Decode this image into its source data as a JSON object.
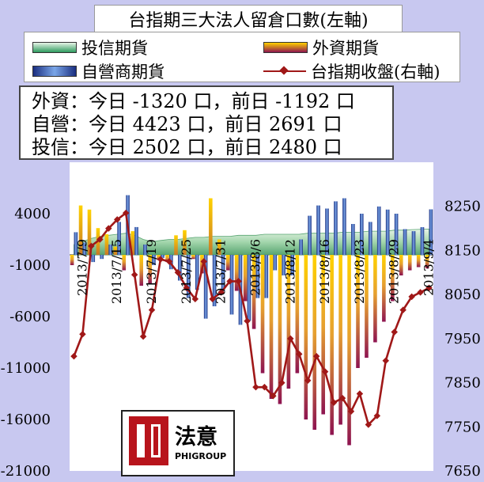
{
  "chart_data": {
    "type": "bar",
    "title": "台指期三大法人留倉口數(左軸)",
    "left_axis": {
      "min": -21000,
      "max": 9000,
      "ticks": [
        4000,
        -1000,
        -6000,
        -11000,
        -16000,
        -21000
      ],
      "tick_labels": [
        "4000",
        "-1000",
        "-6000",
        "-11000",
        "-16000",
        "-21000"
      ]
    },
    "right_axis": {
      "min": 7650,
      "max": 8350,
      "ticks": [
        8250,
        8150,
        8050,
        7950,
        7850,
        7750,
        7650
      ],
      "tick_labels": [
        "8250",
        "8150",
        "8050",
        "7950",
        "7850",
        "7750",
        "7650"
      ]
    },
    "x_labels": [
      "2013/7/9",
      "2013/7/15",
      "2013/7/19",
      "2013/7/25",
      "2013/7/31",
      "2013/8/6",
      "2013/8/12",
      "2013/8/16",
      "2013/8/23",
      "2013/8/29",
      "2013/9/4"
    ],
    "x_label_positions": [
      1,
      5,
      9,
      13,
      17,
      21,
      25,
      29,
      33,
      37,
      41
    ],
    "n_days": 42,
    "series": [
      {
        "name": "投信期貨",
        "kind": "area",
        "color": "#2e9a5e",
        "values": [
          1000,
          1300,
          1600,
          1800,
          1900,
          2000,
          2100,
          1900,
          1500,
          1300,
          1400,
          1500,
          1500,
          1600,
          1700,
          1700,
          1800,
          1800,
          1800,
          1900,
          1900,
          1900,
          2000,
          2000,
          2000,
          2000,
          2000,
          2100,
          2100,
          2100,
          2100,
          2200,
          2200,
          2200,
          2300,
          2300,
          2300,
          2400,
          2400,
          2450,
          2480,
          2502
        ]
      },
      {
        "name": "外資期貨",
        "kind": "bar",
        "color": "#f0b800",
        "values": [
          -1000,
          4800,
          4400,
          2600,
          2000,
          800,
          -1500,
          2300,
          -3000,
          -2800,
          -500,
          -700,
          1900,
          2400,
          -400,
          -1800,
          5500,
          1500,
          -1500,
          -3500,
          -4500,
          -7200,
          -11500,
          -14000,
          -14500,
          -13000,
          -11500,
          -16000,
          -17000,
          -15500,
          -17500,
          -16500,
          -18500,
          -11000,
          -10000,
          -8500,
          -6500,
          -4500,
          -2000,
          -1500,
          -1192,
          -1320
        ]
      },
      {
        "name": "自營商期貨",
        "kind": "bar",
        "color": "#4a78c8",
        "values": [
          2200,
          1200,
          -700,
          -400,
          1000,
          3200,
          5800,
          2700,
          1000,
          -1000,
          -300,
          -1400,
          -2500,
          -4200,
          -3400,
          -6200,
          -5000,
          -3500,
          -5800,
          -6800,
          -6400,
          -4200,
          -4200,
          -1500,
          -2000,
          -2000,
          1500,
          3800,
          4800,
          4500,
          5200,
          5500,
          3000,
          4000,
          3200,
          4700,
          4400,
          4000,
          2500,
          2300,
          2691,
          4423
        ]
      },
      {
        "name": "台指期收盤(右軸)",
        "kind": "line",
        "color": "#a01818",
        "values": [
          7910,
          7960,
          8160,
          8175,
          8200,
          8220,
          8235,
          8095,
          7955,
          8015,
          8130,
          8125,
          8100,
          8065,
          8040,
          8125,
          8040,
          8055,
          8080,
          8080,
          7990,
          7840,
          7840,
          7820,
          7850,
          7950,
          7915,
          7855,
          7910,
          7875,
          7805,
          7815,
          7785,
          7825,
          7755,
          7775,
          7900,
          7965,
          8015,
          8045,
          8055,
          8065
        ]
      }
    ]
  },
  "legend": {
    "inst_label": "投信期貨",
    "foreign_label": "外資期貨",
    "dealer_label": "自營商期貨",
    "index_label": "台指期收盤(右軸)"
  },
  "info_box": {
    "line1": "外資：今日 -1320 口，前日 -1192 口",
    "line2": "自營：今日 4423 口，前日 2691 口",
    "line3": "投信：今日 2502 口，前日 2480 口"
  },
  "logo": {
    "cn": "法意",
    "en": "PHIGROUP"
  }
}
